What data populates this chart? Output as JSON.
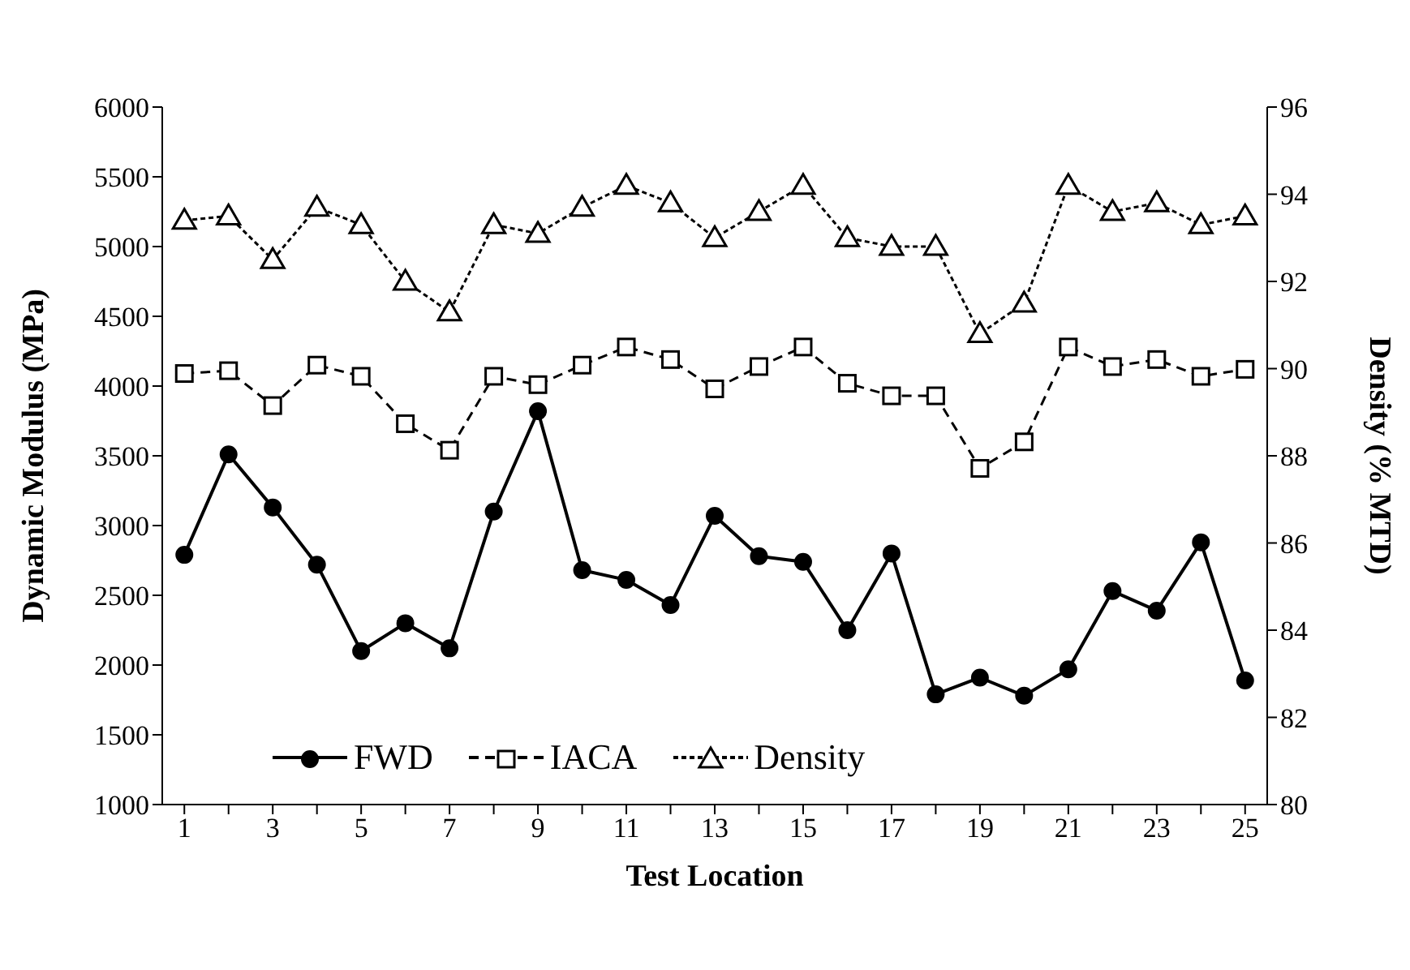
{
  "chart_data": {
    "type": "line",
    "xlabel": "Test Location",
    "ylabel": "Dynamic Modulus (MPa)",
    "y2label": "Density (% MTD)",
    "x": [
      1,
      2,
      3,
      4,
      5,
      6,
      7,
      8,
      9,
      10,
      11,
      12,
      13,
      14,
      15,
      16,
      17,
      18,
      19,
      20,
      21,
      22,
      23,
      24,
      25
    ],
    "xlim": [
      0.5,
      25.5
    ],
    "xticks": [
      1,
      {
        "value": 2,
        "label": null
      },
      3,
      {
        "value": 4,
        "label": null
      },
      5,
      {
        "value": 6,
        "label": null
      },
      7,
      {
        "value": 8,
        "label": null
      },
      9,
      {
        "value": 10,
        "label": null
      },
      11,
      {
        "value": 12,
        "label": null
      },
      13,
      {
        "value": 14,
        "label": null
      },
      15,
      {
        "value": 16,
        "label": null
      },
      17,
      {
        "value": 18,
        "label": null
      },
      19,
      {
        "value": 20,
        "label": null
      },
      21,
      {
        "value": 22,
        "label": null
      },
      23,
      {
        "value": 24,
        "label": null
      },
      25
    ],
    "series": [
      {
        "name": "FWD",
        "color": "#000000",
        "marker": "circle",
        "line_style": "solid",
        "values": [
          2790,
          3510,
          3130,
          2720,
          2100,
          2300,
          2120,
          3100,
          3820,
          2680,
          2610,
          2430,
          3070,
          2780,
          2740,
          2250,
          2800,
          1790,
          1910,
          1780,
          1970,
          2530,
          2390,
          2880,
          1890
        ]
      },
      {
        "name": "IACA",
        "color": "#000000",
        "marker": "square",
        "line_style": "dashed",
        "values": [
          4090,
          4110,
          3860,
          4150,
          4070,
          3730,
          3540,
          4070,
          4010,
          4150,
          4280,
          4190,
          3980,
          4140,
          4280,
          4020,
          3930,
          3930,
          3410,
          3600,
          4280,
          4140,
          4190,
          4070,
          4120
        ]
      },
      {
        "name": "Density",
        "color": "#000000",
        "marker": "triangle",
        "line_style": "dotted",
        "axis": "y2",
        "values": [
          93.4,
          93.5,
          92.5,
          93.7,
          93.3,
          92.0,
          91.3,
          93.3,
          93.1,
          93.7,
          94.2,
          93.8,
          93.0,
          93.6,
          94.2,
          93.0,
          92.8,
          92.8,
          90.8,
          91.5,
          94.2,
          93.6,
          93.8,
          93.3,
          93.5
        ]
      }
    ],
    "ylim": [
      1000,
      6000
    ],
    "yticks": [
      1000,
      1500,
      2000,
      2500,
      3000,
      3500,
      4000,
      4500,
      5000,
      5500,
      6000
    ],
    "y2lim": [
      80,
      96
    ],
    "y2ticks": [
      80,
      82,
      84,
      86,
      88,
      90,
      92,
      94,
      96
    ],
    "grid": false,
    "legend": "bottom left"
  }
}
